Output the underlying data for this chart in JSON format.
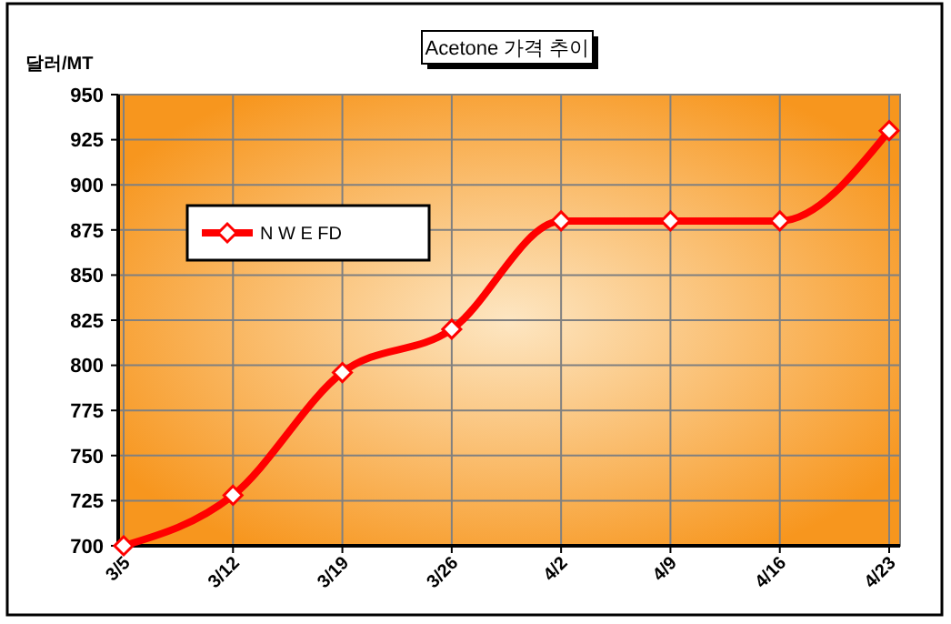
{
  "chart_data": {
    "type": "line",
    "title": "Acetone 가격 추이",
    "ylabel": "달러/MT",
    "categories": [
      "3/5",
      "3/12",
      "3/19",
      "3/26",
      "4/2",
      "4/9",
      "4/16",
      "4/23"
    ],
    "series": [
      {
        "name": "N W E FD",
        "color": "#ff0000",
        "values": [
          700,
          728,
          796,
          820,
          880,
          880,
          880,
          930
        ]
      }
    ],
    "ylim": [
      700,
      950
    ],
    "yticks": [
      700,
      725,
      750,
      775,
      800,
      825,
      850,
      875,
      900,
      925,
      950
    ],
    "grid": true,
    "legend": "left",
    "marker": "diamond",
    "line_style": "solid"
  }
}
